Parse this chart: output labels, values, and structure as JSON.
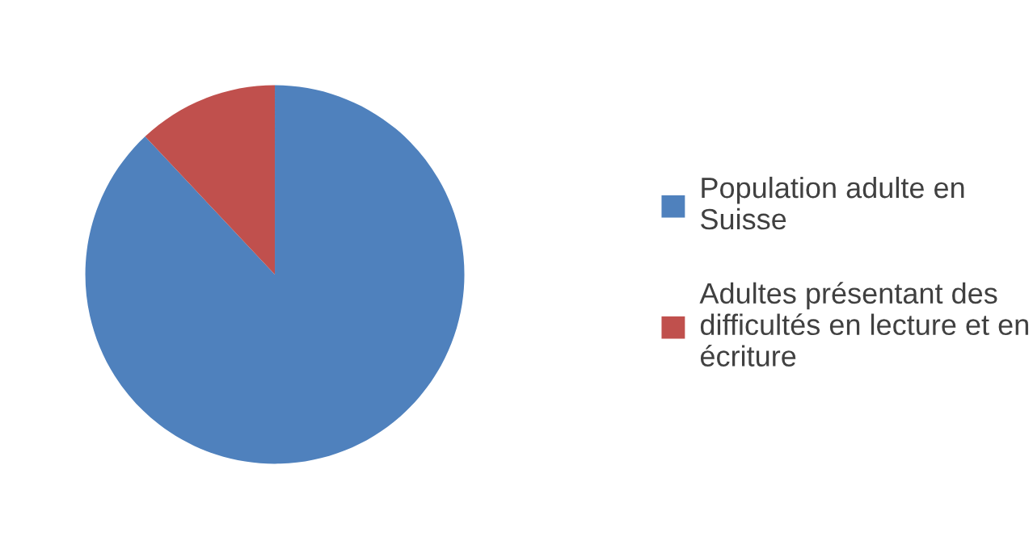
{
  "chart_data": {
    "type": "pie",
    "categories": [
      "Population adulte en Suisse",
      "Adultes présentant des difficultés en lecture et en écriture"
    ],
    "values": [
      88,
      12
    ],
    "colors": [
      "#4f81bd",
      "#c0504d"
    ],
    "legend": "right"
  }
}
